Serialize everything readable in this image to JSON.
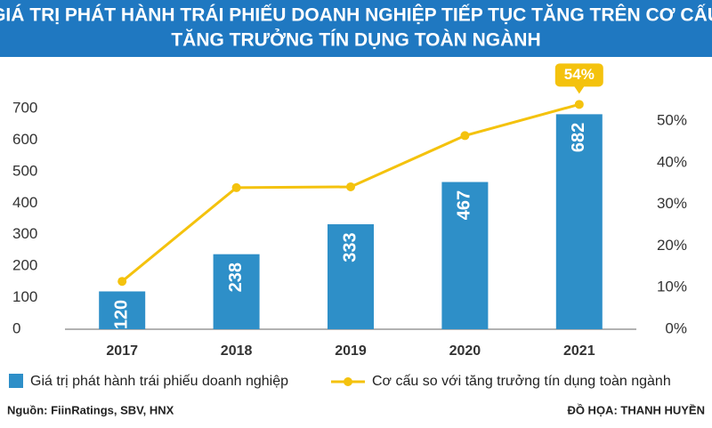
{
  "chart_data": {
    "type": "bar",
    "title": [
      "GIÁ TRỊ PHÁT HÀNH TRÁI PHIẾU DOANH NGHIỆP TIẾP TỤC TĂNG TRÊN CƠ CẤU",
      "TĂNG TRƯỞNG TÍN DỤNG TOÀN NGÀNH"
    ],
    "categories": [
      "2017",
      "2018",
      "2019",
      "2020",
      "2021"
    ],
    "series": [
      {
        "name": "Giá trị phát hành trái phiếu doanh nghiệp",
        "type": "bar",
        "color": "#2e8fc8",
        "values": [
          120,
          238,
          333,
          467,
          682
        ]
      },
      {
        "name": "Cơ cấu so với tăng trưởng tín dụng toàn ngành",
        "type": "line",
        "axis": "y2",
        "color": "#f4c20d",
        "values": [
          11.5,
          34,
          34.2,
          46.5,
          54
        ],
        "value_labels": [
          null,
          null,
          null,
          null,
          "54%"
        ]
      }
    ],
    "ylim": [
      0,
      700
    ],
    "yticks": [
      0,
      100,
      200,
      300,
      400,
      500,
      600,
      700
    ],
    "y2lim": [
      0,
      53
    ],
    "y2ticks": [
      {
        "value": 0,
        "label": "0%"
      },
      {
        "value": 10,
        "label": "10%"
      },
      {
        "value": 20,
        "label": "20%"
      },
      {
        "value": 30,
        "label": "30%"
      },
      {
        "value": 40,
        "label": "40%"
      },
      {
        "value": 50,
        "label": "50%"
      }
    ],
    "source": "Nguồn: FiinRatings, SBV, HNX",
    "credit": "ĐỒ HỌA: THANH HUYỀN"
  }
}
